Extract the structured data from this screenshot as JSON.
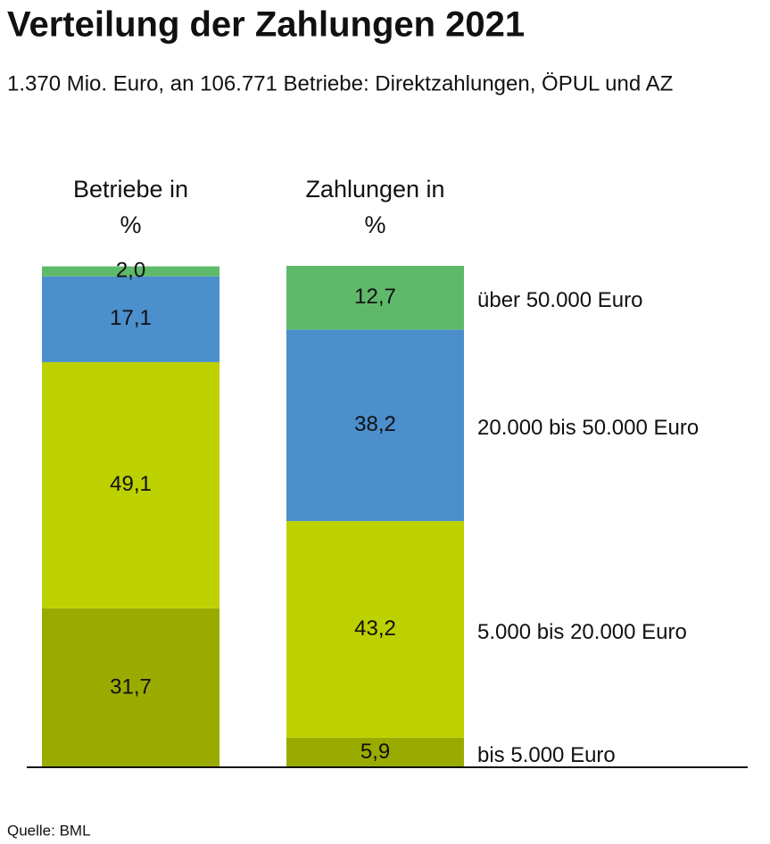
{
  "chart_data": {
    "type": "stacked-bar",
    "title": "Verteilung der Zahlungen 2021",
    "subtitle": "1.370 Mio. Euro, an 106.771 Betriebe: Direktzahlungen, ÖPUL und AZ",
    "source": "Quelle: BML",
    "categories": [
      "Betriebe in %",
      "Zahlungen in %"
    ],
    "ylim": [
      0,
      100
    ],
    "series": [
      {
        "name": "bis 5.000 Euro",
        "color": "#9aab00",
        "values": [
          31.7,
          5.9
        ],
        "value_labels": [
          "31,7",
          "5,9"
        ]
      },
      {
        "name": "5.000 bis 20.000 Euro",
        "color": "#bdd000",
        "values": [
          49.1,
          43.2
        ],
        "value_labels": [
          "49,1",
          "43,2"
        ]
      },
      {
        "name": "20.000 bis 50.000 Euro",
        "color": "#4b8fcc",
        "values": [
          17.1,
          38.2
        ],
        "value_labels": [
          "17,1",
          "38,2"
        ]
      },
      {
        "name": "über 50.000 Euro",
        "color": "#5fb96a",
        "values": [
          2.0,
          12.7
        ],
        "value_labels": [
          "2,0",
          "12,7"
        ]
      }
    ]
  }
}
